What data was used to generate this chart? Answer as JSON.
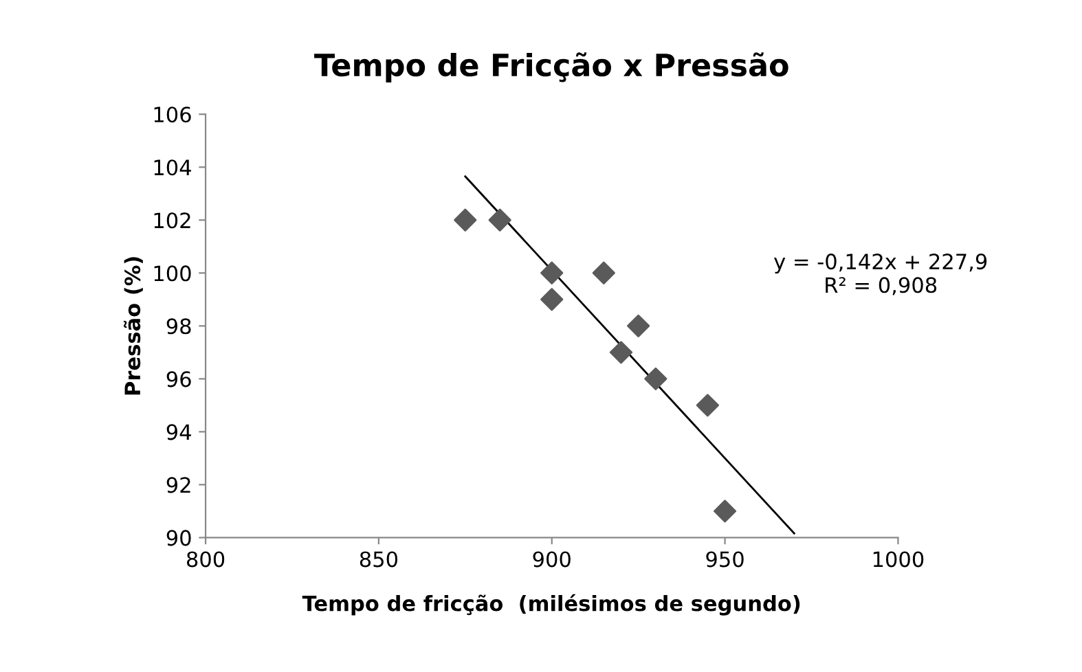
{
  "chart_data": {
    "type": "scatter",
    "title": "Tempo de Fricção x Pressão",
    "xlabel": "Tempo de fricção  (milésimos de segundo)",
    "ylabel": "Pressão (%)",
    "series": [
      {
        "color": "#5a5a5a",
        "x": [
          875,
          885,
          900,
          900,
          915,
          920,
          925,
          930,
          945,
          950
        ],
        "values": [
          102,
          102,
          100,
          99,
          100,
          97,
          98,
          96,
          95,
          91
        ],
        "marker": "diamond"
      },
      {
        "type": "line",
        "color": "#000000",
        "x": [
          875,
          970
        ],
        "values": [
          103.65,
          90.16
        ],
        "marker": "none",
        "line_style": "solid"
      }
    ],
    "annotations": [
      "y = -0,142x + 227,9\nR² = 0,908"
    ],
    "xlim": [
      800,
      1000
    ],
    "xticks": [
      800,
      850,
      900,
      950,
      1000
    ],
    "ylim": [
      90,
      106
    ],
    "yticks": [
      90,
      92,
      94,
      96,
      98,
      100,
      102,
      104,
      106
    ],
    "grid": false,
    "legend": false
  }
}
